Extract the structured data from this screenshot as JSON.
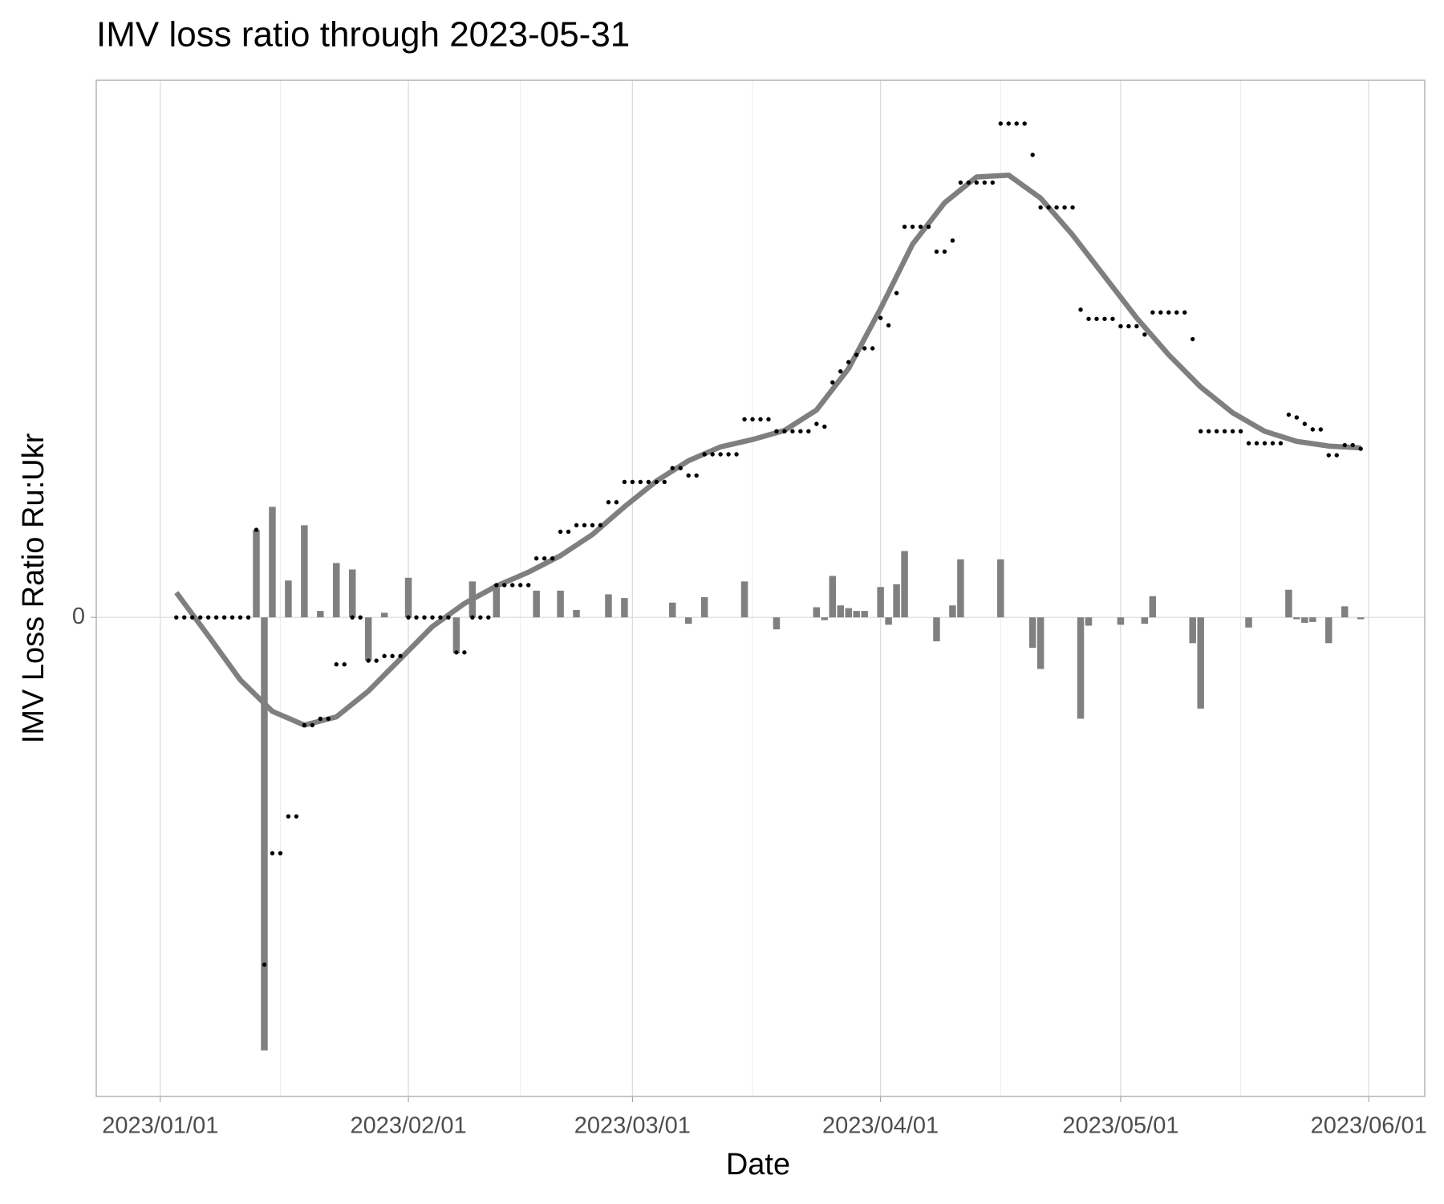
{
  "chart_data": {
    "type": "combo",
    "title": "IMV loss ratio through 2023-05-31",
    "x_label": "Date",
    "y_label": "IMV Loss Ratio Ru:Ukr",
    "xlim": [
      "2022-12-24",
      "2023-06-08"
    ],
    "xticks": [
      {
        "value": "2023-01-01",
        "label": "2023/01/01"
      },
      {
        "value": "2023-02-01",
        "label": "2023/02/01"
      },
      {
        "value": "2023-03-01",
        "label": "2023/03/01"
      },
      {
        "value": "2023-04-01",
        "label": "2023/04/01"
      },
      {
        "value": "2023-05-01",
        "label": "2023/05/01"
      },
      {
        "value": "2023-06-01",
        "label": "2023/06/01"
      }
    ],
    "xminor": [
      "2023-01-16",
      "2023-02-15",
      "2023-03-16",
      "2023-04-16",
      "2023-05-16"
    ],
    "ylim": [
      -5.2,
      5.83
    ],
    "yticks": [
      0
    ],
    "grid": true,
    "series": [
      {
        "type": "bar",
        "color": "#808080",
        "x": [
          "2023-01-13",
          "2023-01-14",
          "2023-01-15",
          "2023-01-17",
          "2023-01-19",
          "2023-01-21",
          "2023-01-23",
          "2023-01-25",
          "2023-01-27",
          "2023-01-29",
          "2023-02-01",
          "2023-02-07",
          "2023-02-09",
          "2023-02-12",
          "2023-02-17",
          "2023-02-20",
          "2023-02-22",
          "2023-02-26",
          "2023-02-28",
          "2023-03-06",
          "2023-03-08",
          "2023-03-10",
          "2023-03-15",
          "2023-03-19",
          "2023-03-24",
          "2023-03-25",
          "2023-03-26",
          "2023-03-27",
          "2023-03-28",
          "2023-03-29",
          "2023-03-30",
          "2023-04-01",
          "2023-04-02",
          "2023-04-03",
          "2023-04-04",
          "2023-04-08",
          "2023-04-10",
          "2023-04-11",
          "2023-04-16",
          "2023-04-20",
          "2023-04-21",
          "2023-04-26",
          "2023-04-27",
          "2023-05-01",
          "2023-05-04",
          "2023-05-05",
          "2023-05-10",
          "2023-05-11",
          "2023-05-17",
          "2023-05-22",
          "2023-05-23",
          "2023-05-24",
          "2023-05-25",
          "2023-05-27",
          "2023-05-29",
          "2023-05-31"
        ],
        "values": [
          0.95,
          -4.7,
          1.2,
          0.4,
          1.0,
          0.07,
          0.59,
          0.52,
          -0.47,
          0.05,
          0.43,
          -0.39,
          0.39,
          0.36,
          0.29,
          0.29,
          0.08,
          0.25,
          0.21,
          0.16,
          -0.07,
          0.22,
          0.39,
          -0.13,
          0.11,
          -0.03,
          0.45,
          0.13,
          0.1,
          0.07,
          0.07,
          0.33,
          -0.08,
          0.36,
          0.72,
          -0.26,
          0.13,
          0.63,
          0.63,
          -0.33,
          -0.56,
          -1.1,
          -0.09,
          -0.08,
          -0.07,
          0.23,
          -0.28,
          -0.99,
          -0.11,
          0.3,
          -0.02,
          -0.06,
          -0.05,
          -0.28,
          0.12,
          -0.02
        ]
      },
      {
        "type": "line",
        "color": "#7f7f7f",
        "x": [
          "2023-01-03",
          "2023-01-07",
          "2023-01-11",
          "2023-01-15",
          "2023-01-19",
          "2023-01-23",
          "2023-01-27",
          "2023-01-31",
          "2023-02-04",
          "2023-02-08",
          "2023-02-12",
          "2023-02-16",
          "2023-02-20",
          "2023-02-24",
          "2023-02-28",
          "2023-03-04",
          "2023-03-08",
          "2023-03-12",
          "2023-03-16",
          "2023-03-20",
          "2023-03-24",
          "2023-03-28",
          "2023-04-01",
          "2023-04-05",
          "2023-04-09",
          "2023-04-13",
          "2023-04-17",
          "2023-04-21",
          "2023-04-25",
          "2023-04-29",
          "2023-05-03",
          "2023-05-07",
          "2023-05-11",
          "2023-05-15",
          "2023-05-19",
          "2023-05-23",
          "2023-05-27",
          "2023-05-31"
        ],
        "values": [
          0.27,
          -0.2,
          -0.68,
          -1.02,
          -1.17,
          -1.08,
          -0.8,
          -0.45,
          -0.1,
          0.15,
          0.34,
          0.49,
          0.67,
          0.9,
          1.2,
          1.48,
          1.7,
          1.85,
          1.93,
          2.03,
          2.25,
          2.7,
          3.35,
          4.05,
          4.5,
          4.78,
          4.8,
          4.55,
          4.15,
          3.7,
          3.25,
          2.85,
          2.5,
          2.22,
          2.02,
          1.91,
          1.86,
          1.84
        ]
      },
      {
        "type": "scatter",
        "color": "#000000",
        "x": [
          "2023-01-03",
          "2023-01-04",
          "2023-01-05",
          "2023-01-06",
          "2023-01-07",
          "2023-01-08",
          "2023-01-09",
          "2023-01-10",
          "2023-01-11",
          "2023-01-12",
          "2023-01-13",
          "2023-01-14",
          "2023-01-15",
          "2023-01-16",
          "2023-01-17",
          "2023-01-18",
          "2023-01-19",
          "2023-01-20",
          "2023-01-21",
          "2023-01-22",
          "2023-01-23",
          "2023-01-24",
          "2023-01-25",
          "2023-01-26",
          "2023-01-27",
          "2023-01-28",
          "2023-01-29",
          "2023-01-30",
          "2023-01-31",
          "2023-02-01",
          "2023-02-02",
          "2023-02-03",
          "2023-02-04",
          "2023-02-05",
          "2023-02-06",
          "2023-02-07",
          "2023-02-08",
          "2023-02-09",
          "2023-02-10",
          "2023-02-11",
          "2023-02-12",
          "2023-02-13",
          "2023-02-14",
          "2023-02-15",
          "2023-02-16",
          "2023-02-17",
          "2023-02-18",
          "2023-02-19",
          "2023-02-20",
          "2023-02-21",
          "2023-02-22",
          "2023-02-23",
          "2023-02-24",
          "2023-02-25",
          "2023-02-26",
          "2023-02-27",
          "2023-02-28",
          "2023-03-01",
          "2023-03-02",
          "2023-03-03",
          "2023-03-04",
          "2023-03-05",
          "2023-03-06",
          "2023-03-07",
          "2023-03-08",
          "2023-03-09",
          "2023-03-10",
          "2023-03-11",
          "2023-03-12",
          "2023-03-13",
          "2023-03-14",
          "2023-03-15",
          "2023-03-16",
          "2023-03-17",
          "2023-03-18",
          "2023-03-19",
          "2023-03-20",
          "2023-03-21",
          "2023-03-22",
          "2023-03-23",
          "2023-03-24",
          "2023-03-25",
          "2023-03-26",
          "2023-03-27",
          "2023-03-28",
          "2023-03-29",
          "2023-03-30",
          "2023-03-31",
          "2023-04-01",
          "2023-04-02",
          "2023-04-03",
          "2023-04-04",
          "2023-04-05",
          "2023-04-06",
          "2023-04-07",
          "2023-04-08",
          "2023-04-09",
          "2023-04-10",
          "2023-04-11",
          "2023-04-12",
          "2023-04-13",
          "2023-04-14",
          "2023-04-15",
          "2023-04-16",
          "2023-04-17",
          "2023-04-18",
          "2023-04-19",
          "2023-04-20",
          "2023-04-21",
          "2023-04-22",
          "2023-04-23",
          "2023-04-24",
          "2023-04-25",
          "2023-04-26",
          "2023-04-27",
          "2023-04-28",
          "2023-04-29",
          "2023-04-30",
          "2023-05-01",
          "2023-05-02",
          "2023-05-03",
          "2023-05-04",
          "2023-05-05",
          "2023-05-06",
          "2023-05-07",
          "2023-05-08",
          "2023-05-09",
          "2023-05-10",
          "2023-05-11",
          "2023-05-12",
          "2023-05-13",
          "2023-05-14",
          "2023-05-15",
          "2023-05-16",
          "2023-05-17",
          "2023-05-18",
          "2023-05-19",
          "2023-05-20",
          "2023-05-21",
          "2023-05-22",
          "2023-05-23",
          "2023-05-24",
          "2023-05-25",
          "2023-05-26",
          "2023-05-27",
          "2023-05-28",
          "2023-05-29",
          "2023-05-30",
          "2023-05-31"
        ],
        "values": [
          0,
          0,
          0,
          0,
          0,
          0,
          0,
          0,
          0,
          0,
          0.95,
          -3.77,
          -2.56,
          -2.56,
          -2.16,
          -2.16,
          -1.17,
          -1.17,
          -1.1,
          -1.1,
          -0.51,
          -0.51,
          0,
          0,
          -0.47,
          -0.47,
          -0.42,
          -0.42,
          -0.42,
          0,
          0,
          0,
          0,
          0,
          0,
          -0.38,
          -0.38,
          0,
          0,
          0,
          0.35,
          0.35,
          0.35,
          0.35,
          0.35,
          0.64,
          0.64,
          0.64,
          0.93,
          0.93,
          1.0,
          1.0,
          1.0,
          1.0,
          1.25,
          1.25,
          1.47,
          1.47,
          1.47,
          1.47,
          1.47,
          1.47,
          1.62,
          1.62,
          1.54,
          1.54,
          1.77,
          1.77,
          1.77,
          1.77,
          1.77,
          2.15,
          2.15,
          2.15,
          2.15,
          2.02,
          2.02,
          2.02,
          2.02,
          2.02,
          2.1,
          2.07,
          2.55,
          2.67,
          2.77,
          2.85,
          2.92,
          2.92,
          3.25,
          3.17,
          3.52,
          4.24,
          4.24,
          4.24,
          4.24,
          3.97,
          3.97,
          4.09,
          4.72,
          4.72,
          4.72,
          4.72,
          4.72,
          5.36,
          5.36,
          5.36,
          5.36,
          5.02,
          4.45,
          4.45,
          4.45,
          4.45,
          4.45,
          3.34,
          3.24,
          3.24,
          3.24,
          3.24,
          3.16,
          3.16,
          3.16,
          3.07,
          3.31,
          3.31,
          3.31,
          3.31,
          3.31,
          3.02,
          2.02,
          2.02,
          2.02,
          2.02,
          2.02,
          2.02,
          1.89,
          1.89,
          1.89,
          1.89,
          1.89,
          2.2,
          2.17,
          2.1,
          2.04,
          2.04,
          1.76,
          1.76,
          1.87,
          1.87,
          1.83
        ]
      }
    ]
  }
}
